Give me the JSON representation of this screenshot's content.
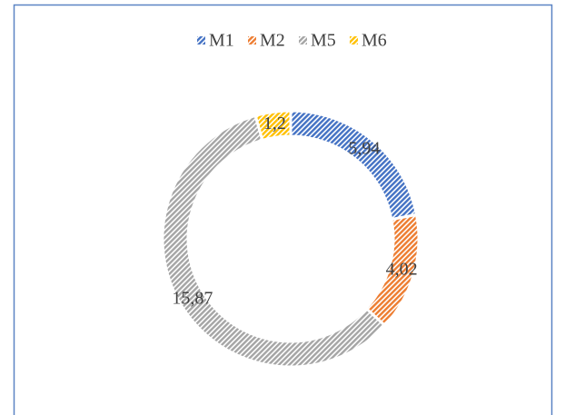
{
  "chart_data": {
    "type": "donut",
    "categories": [
      "M1",
      "M2",
      "M5",
      "M6"
    ],
    "values": [
      5.94,
      4.02,
      15.87,
      1.2
    ],
    "value_labels": [
      "5,94",
      "4,02",
      "15,87",
      "1,2"
    ],
    "colors": [
      "#4472c4",
      "#ed7d31",
      "#a5a5a5",
      "#ffc000"
    ],
    "legend": "top"
  }
}
